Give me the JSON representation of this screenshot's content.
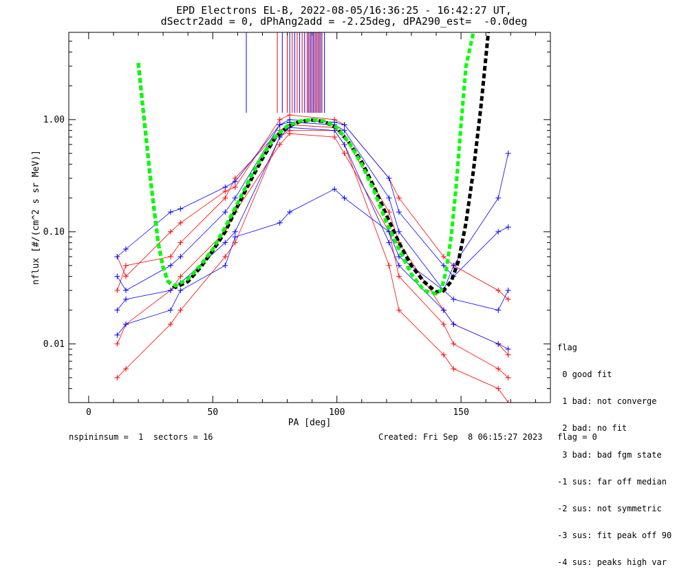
{
  "title_line1": "EPD Electrons EL-B, 2022-08-05/16:36:25 - 16:42:27 UT,",
  "title_line2": "dSectr2add = 0, dPhAng2add = -2.25deg, dPA290_est=  -0.0deg",
  "footer_left": "nspininsum =  1  sectors = 16",
  "footer_right": "Created: Fri Sep  8 06:15:27 2023   flag = 0",
  "legend": {
    "title": "flag",
    "items": [
      " 0 good fit",
      " 1 bad: not converge",
      " 2 bad: no fit",
      " 3 bad: bad fgm state",
      "-1 sus: far off median",
      "-2 sus: not symmetric",
      "-3 sus: fit peak off 90",
      "-4 sus: peaks high var"
    ]
  },
  "colors": {
    "series_a": "#ff0000",
    "series_b": "#0000ff",
    "fit_1": "#00ff00",
    "fit_2": "#000000"
  },
  "chart_data": {
    "type": "line",
    "xlabel": "PA [deg]",
    "ylabel": "nflux [#/(cm^2 s sr MeV)]",
    "xlim": [
      -8,
      186
    ],
    "ylim": [
      0.003,
      6.0
    ],
    "yscale": "log",
    "x_ticks": [
      0,
      50,
      100,
      150
    ],
    "x_tick_labels": [
      "0",
      "50",
      "100",
      "150"
    ],
    "y_ticks": [
      0.01,
      0.1,
      1.0
    ],
    "y_tick_labels": [
      "0.01",
      "0.10",
      "1.00"
    ],
    "pa_bins": [
      11.5,
      15,
      33,
      37,
      55,
      59,
      77,
      81,
      99,
      103,
      121,
      125,
      143,
      147,
      165,
      169
    ],
    "sample_series_red": [
      {
        "values": [
          0.03,
          0.05,
          0.06,
          0.08,
          0.2,
          0.3,
          0.8,
          0.9,
          0.85,
          0.7,
          0.15,
          0.08,
          0.02,
          0.015,
          0.01,
          0.008
        ]
      },
      {
        "values": [
          0.01,
          0.015,
          0.03,
          0.04,
          0.1,
          0.15,
          0.6,
          0.75,
          0.7,
          0.5,
          0.1,
          0.04,
          0.015,
          0.01,
          0.006,
          0.005
        ]
      },
      {
        "values": [
          0.06,
          0.04,
          0.1,
          0.12,
          0.23,
          0.25,
          1.0,
          1.1,
          1.0,
          0.9,
          0.3,
          0.2,
          0.06,
          0.05,
          0.03,
          0.025
        ]
      },
      {
        "values": [
          0.005,
          0.006,
          0.015,
          0.02,
          0.06,
          0.08,
          0.7,
          0.8,
          0.8,
          0.6,
          0.05,
          0.02,
          0.008,
          0.006,
          0.004,
          0.003
        ]
      }
    ],
    "sample_series_blue": [
      {
        "values": [
          0.04,
          0.03,
          0.05,
          0.06,
          0.15,
          0.2,
          0.9,
          0.95,
          0.9,
          0.8,
          0.2,
          0.1,
          0.03,
          0.025,
          0.02,
          0.03
        ]
      },
      {
        "values": [
          0.02,
          0.025,
          0.03,
          0.035,
          0.08,
          0.1,
          0.7,
          0.85,
          0.8,
          0.6,
          0.08,
          0.05,
          0.02,
          0.015,
          0.01,
          0.009
        ]
      },
      {
        "values": [
          0.012,
          0.015,
          0.02,
          0.03,
          0.05,
          0.09,
          0.12,
          0.15,
          0.24,
          0.2,
          0.1,
          0.06,
          0.03,
          0.05,
          0.2,
          0.5
        ]
      },
      {
        "values": [
          0.06,
          0.07,
          0.15,
          0.16,
          0.25,
          0.28,
          0.9,
          1.0,
          0.95,
          0.9,
          0.3,
          0.15,
          0.05,
          0.04,
          0.1,
          0.11
        ]
      }
    ],
    "fit_green": {
      "x": [
        20,
        22,
        25,
        28,
        30,
        32,
        35,
        40,
        45,
        50,
        55,
        60,
        65,
        70,
        75,
        80,
        85,
        90,
        95,
        100,
        105,
        110,
        115,
        120,
        125,
        130,
        135,
        140,
        142,
        144,
        146,
        148,
        150,
        152,
        155
      ],
      "y": [
        3.2,
        1.2,
        0.28,
        0.08,
        0.048,
        0.036,
        0.033,
        0.038,
        0.05,
        0.07,
        0.11,
        0.18,
        0.3,
        0.48,
        0.7,
        0.88,
        0.97,
        1.0,
        0.97,
        0.85,
        0.62,
        0.4,
        0.23,
        0.12,
        0.07,
        0.042,
        0.03,
        0.028,
        0.03,
        0.045,
        0.09,
        0.25,
        0.9,
        3.0,
        6.0
      ]
    },
    "fit_black": {
      "x": [
        20,
        22,
        25,
        28,
        30,
        32,
        35,
        40,
        45,
        50,
        55,
        60,
        65,
        70,
        75,
        80,
        85,
        90,
        95,
        100,
        105,
        110,
        115,
        120,
        125,
        130,
        135,
        140,
        143,
        146,
        149,
        152,
        155,
        158,
        161
      ],
      "y": [
        3.2,
        1.2,
        0.28,
        0.08,
        0.048,
        0.036,
        0.032,
        0.036,
        0.048,
        0.068,
        0.1,
        0.17,
        0.28,
        0.45,
        0.68,
        0.86,
        0.96,
        0.99,
        0.96,
        0.84,
        0.62,
        0.42,
        0.25,
        0.14,
        0.08,
        0.05,
        0.036,
        0.029,
        0.03,
        0.036,
        0.055,
        0.12,
        0.35,
        1.3,
        6.0
      ]
    },
    "vertical_spikes_x": [
      63.5,
      76,
      78,
      80,
      81,
      82,
      83,
      84,
      85,
      86,
      87,
      88,
      88.5,
      89,
      89.5,
      90,
      90.5,
      91,
      91.5,
      92,
      92.5,
      93,
      93.5,
      94,
      95
    ],
    "vertical_spikes_ybottom": [
      1.15,
      1.15,
      1.15,
      1.15,
      1.15,
      1.15,
      1.15,
      1.15,
      1.15,
      1.15,
      1.15,
      1.15,
      1.15,
      1.15,
      1.15,
      1.15,
      1.15,
      1.15,
      1.15,
      1.15,
      1.15,
      1.15,
      1.15,
      1.15,
      1.15
    ]
  }
}
